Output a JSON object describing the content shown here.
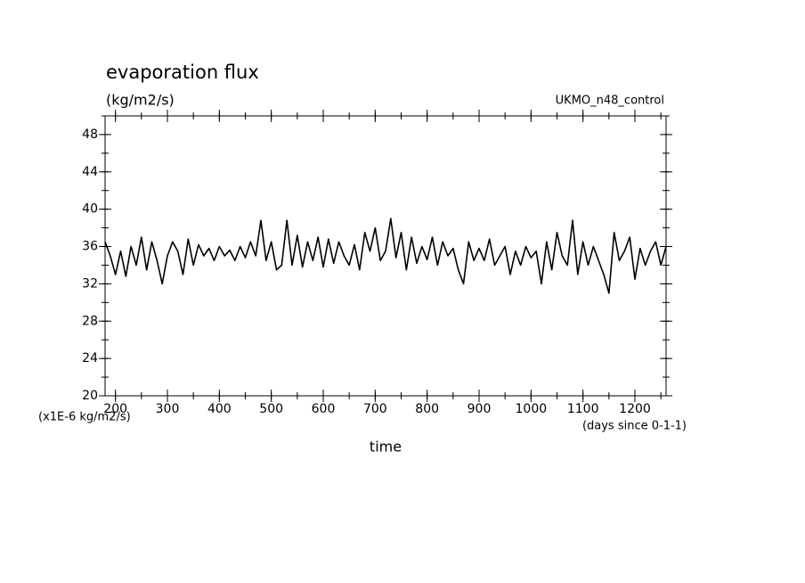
{
  "chart_data": {
    "type": "line",
    "title": "evaporation flux",
    "subtitle": "(kg/m2/s)",
    "annotation": "UKMO_n48_control",
    "ylabel": "(x1E-6 kg/m2/s)",
    "xunits": "(days since 0-1-1)",
    "xlabel": "time",
    "x": [
      180,
      190,
      200,
      210,
      220,
      230,
      240,
      250,
      260,
      270,
      280,
      290,
      300,
      310,
      320,
      330,
      340,
      350,
      360,
      370,
      380,
      390,
      400,
      410,
      420,
      430,
      440,
      450,
      460,
      470,
      480,
      490,
      500,
      510,
      520,
      530,
      540,
      550,
      560,
      570,
      580,
      590,
      600,
      610,
      620,
      630,
      640,
      650,
      660,
      670,
      680,
      690,
      700,
      710,
      720,
      730,
      740,
      750,
      760,
      770,
      780,
      790,
      800,
      810,
      820,
      830,
      840,
      850,
      860,
      870,
      880,
      890,
      900,
      910,
      920,
      930,
      940,
      950,
      960,
      970,
      980,
      990,
      1000,
      1010,
      1020,
      1030,
      1040,
      1050,
      1060,
      1070,
      1080,
      1090,
      1100,
      1110,
      1120,
      1130,
      1140,
      1150,
      1160,
      1170,
      1180,
      1190,
      1200,
      1210,
      1220,
      1230,
      1240,
      1250,
      1260
    ],
    "series": [
      {
        "name": "UKMO_n48_control",
        "color": "#000000",
        "values": [
          36.5,
          35,
          33,
          35.5,
          32.8,
          36,
          34,
          37,
          33.5,
          36.5,
          34.5,
          32,
          35,
          36.5,
          35.5,
          33,
          36.8,
          34,
          36.2,
          35,
          35.8,
          34.5,
          36,
          35,
          35.6,
          34.5,
          36,
          34.8,
          36.5,
          35,
          38.8,
          34.5,
          36.5,
          33.5,
          34,
          38.8,
          34,
          37.2,
          33.8,
          36.5,
          34.5,
          37,
          33.8,
          36.8,
          34.2,
          36.5,
          35,
          34,
          36.2,
          33.5,
          37.5,
          35.5,
          38,
          34.5,
          35.5,
          39,
          34.8,
          37.5,
          33.5,
          37,
          34.2,
          36,
          34.6,
          37,
          34,
          36.5,
          35,
          35.8,
          33.5,
          32,
          36.5,
          34.5,
          35.8,
          34.5,
          36.8,
          34,
          35,
          36,
          33,
          35.5,
          34,
          36,
          34.8,
          35.5,
          32,
          36.5,
          33.5,
          37.5,
          35,
          34,
          38.8,
          33,
          36.5,
          34,
          36,
          34.5,
          33,
          31,
          37.5,
          34.5,
          35.5,
          37,
          32.5,
          35.8,
          34,
          35.5,
          36.5,
          34,
          36
        ]
      }
    ],
    "xlim": [
      180,
      1260
    ],
    "ylim": [
      20,
      50
    ],
    "xticks": [
      200,
      300,
      400,
      500,
      600,
      700,
      800,
      900,
      1000,
      1100,
      1200
    ],
    "yticks": [
      20,
      24,
      28,
      32,
      36,
      40,
      44,
      48
    ],
    "xminorticks": [
      200,
      250,
      300,
      350,
      400,
      450,
      500,
      550,
      600,
      650,
      700,
      750,
      800,
      850,
      900,
      950,
      1000,
      1050,
      1100,
      1150,
      1200,
      1250
    ],
    "yminorticks": [
      20,
      22,
      24,
      26,
      28,
      30,
      32,
      34,
      36,
      38,
      40,
      42,
      44,
      46,
      48,
      50
    ]
  }
}
